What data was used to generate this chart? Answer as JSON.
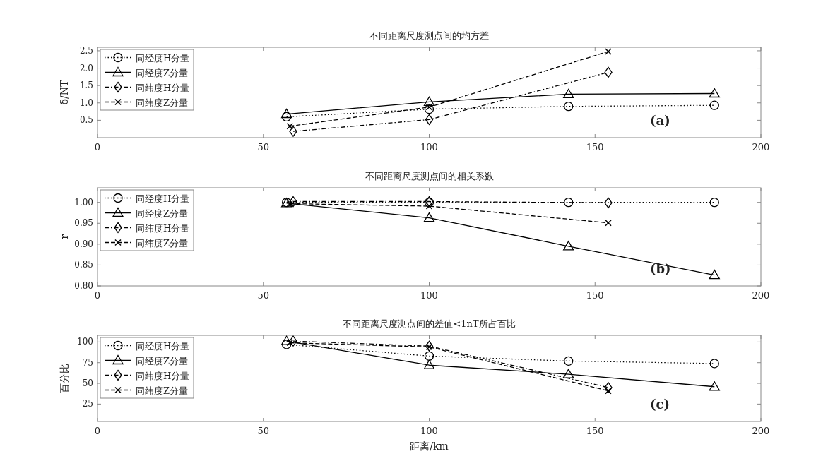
{
  "chart_data": [
    {
      "type": "line",
      "title": "不同距离尺度测点间的均方差",
      "ylabel": "δ/NT",
      "xlim": [
        0,
        200
      ],
      "xticks": [
        0,
        50,
        100,
        150,
        200
      ],
      "ylim": [
        0,
        2.6
      ],
      "yticks": [
        {
          "value": 0.5,
          "label": "0.5"
        },
        {
          "value": 1,
          "label": "1.0"
        },
        {
          "value": 1.5,
          "label": "1.5"
        },
        {
          "value": 2,
          "label": "2.0"
        },
        {
          "value": 2.5,
          "label": "2.5"
        }
      ],
      "legend": "top left",
      "grid": false,
      "annotations": [
        "(a)"
      ],
      "series": [
        {
          "name": "同经度H分量",
          "color": "#000000",
          "marker": "circle",
          "line_style": "dotted",
          "x": [
            57,
            100,
            142,
            186
          ],
          "values": [
            0.6,
            0.82,
            0.9,
            0.93
          ]
        },
        {
          "name": "同经度Z分量",
          "color": "#000000",
          "marker": "triangle",
          "line_style": "solid",
          "x": [
            57,
            100,
            142,
            186
          ],
          "values": [
            0.68,
            1.03,
            1.25,
            1.27
          ]
        },
        {
          "name": "同纬度H分量",
          "color": "#000000",
          "marker": "diamond",
          "line_style": "dashdot",
          "x": [
            59,
            100,
            154
          ],
          "values": [
            0.18,
            0.52,
            1.88
          ]
        },
        {
          "name": "同纬度Z分量",
          "color": "#000000",
          "marker": "cross",
          "line_style": "dashed",
          "x": [
            58,
            100,
            154
          ],
          "values": [
            0.33,
            0.88,
            2.48
          ]
        }
      ]
    },
    {
      "type": "line",
      "title": "不同距离尺度测点间的相关系数",
      "ylabel": "r",
      "xlim": [
        0,
        200
      ],
      "xticks": [
        0,
        50,
        100,
        150,
        200
      ],
      "ylim": [
        0.8,
        1.035
      ],
      "yticks": [
        {
          "value": 0.8,
          "label": "0.80"
        },
        {
          "value": 0.85,
          "label": "0.85"
        },
        {
          "value": 0.9,
          "label": "0.90"
        },
        {
          "value": 0.95,
          "label": "0.95"
        },
        {
          "value": 1,
          "label": "1.00"
        }
      ],
      "legend": "top left",
      "grid": false,
      "annotations": [
        "(b)"
      ],
      "series": [
        {
          "name": "同经度H分量",
          "color": "#000000",
          "marker": "circle",
          "line_style": "dotted",
          "x": [
            57,
            100,
            142,
            186
          ],
          "values": [
            1.0,
            1.0,
            1.0,
            1.0
          ]
        },
        {
          "name": "同经度Z分量",
          "color": "#000000",
          "marker": "triangle",
          "line_style": "solid",
          "x": [
            57,
            100,
            142,
            186
          ],
          "values": [
            0.998,
            0.963,
            0.895,
            0.826
          ]
        },
        {
          "name": "同纬度H分量",
          "color": "#000000",
          "marker": "diamond",
          "line_style": "dashdot",
          "x": [
            59,
            100,
            154
          ],
          "values": [
            1.002,
            1.002,
            0.999
          ]
        },
        {
          "name": "同纬度Z分量",
          "color": "#000000",
          "marker": "cross",
          "line_style": "dashed",
          "x": [
            58,
            100,
            154
          ],
          "values": [
            0.997,
            0.991,
            0.951
          ]
        }
      ]
    },
    {
      "type": "line",
      "title": "不同距离尺度测点间的差值<1nT所占百比",
      "ylabel": "百分比",
      "xlabel": "距离/km",
      "xlim": [
        0,
        200
      ],
      "xticks": [
        0,
        50,
        100,
        150,
        200
      ],
      "ylim": [
        4,
        108
      ],
      "yticks": [
        25,
        50,
        75,
        100
      ],
      "legend": "top left",
      "grid": false,
      "annotations": [
        "(c)"
      ],
      "series": [
        {
          "name": "同经度H分量",
          "color": "#000000",
          "marker": "circle",
          "line_style": "dotted",
          "x": [
            57,
            100,
            142,
            186
          ],
          "values": [
            97,
            83,
            77,
            74
          ]
        },
        {
          "name": "同经度Z分量",
          "color": "#000000",
          "marker": "triangle",
          "line_style": "solid",
          "x": [
            57,
            100,
            142,
            186
          ],
          "values": [
            101,
            72,
            61,
            46
          ]
        },
        {
          "name": "同纬度H分量",
          "color": "#000000",
          "marker": "diamond",
          "line_style": "dashdot",
          "x": [
            59,
            100,
            154
          ],
          "values": [
            101,
            95,
            45
          ]
        },
        {
          "name": "同纬度Z分量",
          "color": "#000000",
          "marker": "cross",
          "line_style": "dashed",
          "x": [
            58,
            100,
            154
          ],
          "values": [
            99,
            94,
            41
          ]
        }
      ]
    }
  ]
}
